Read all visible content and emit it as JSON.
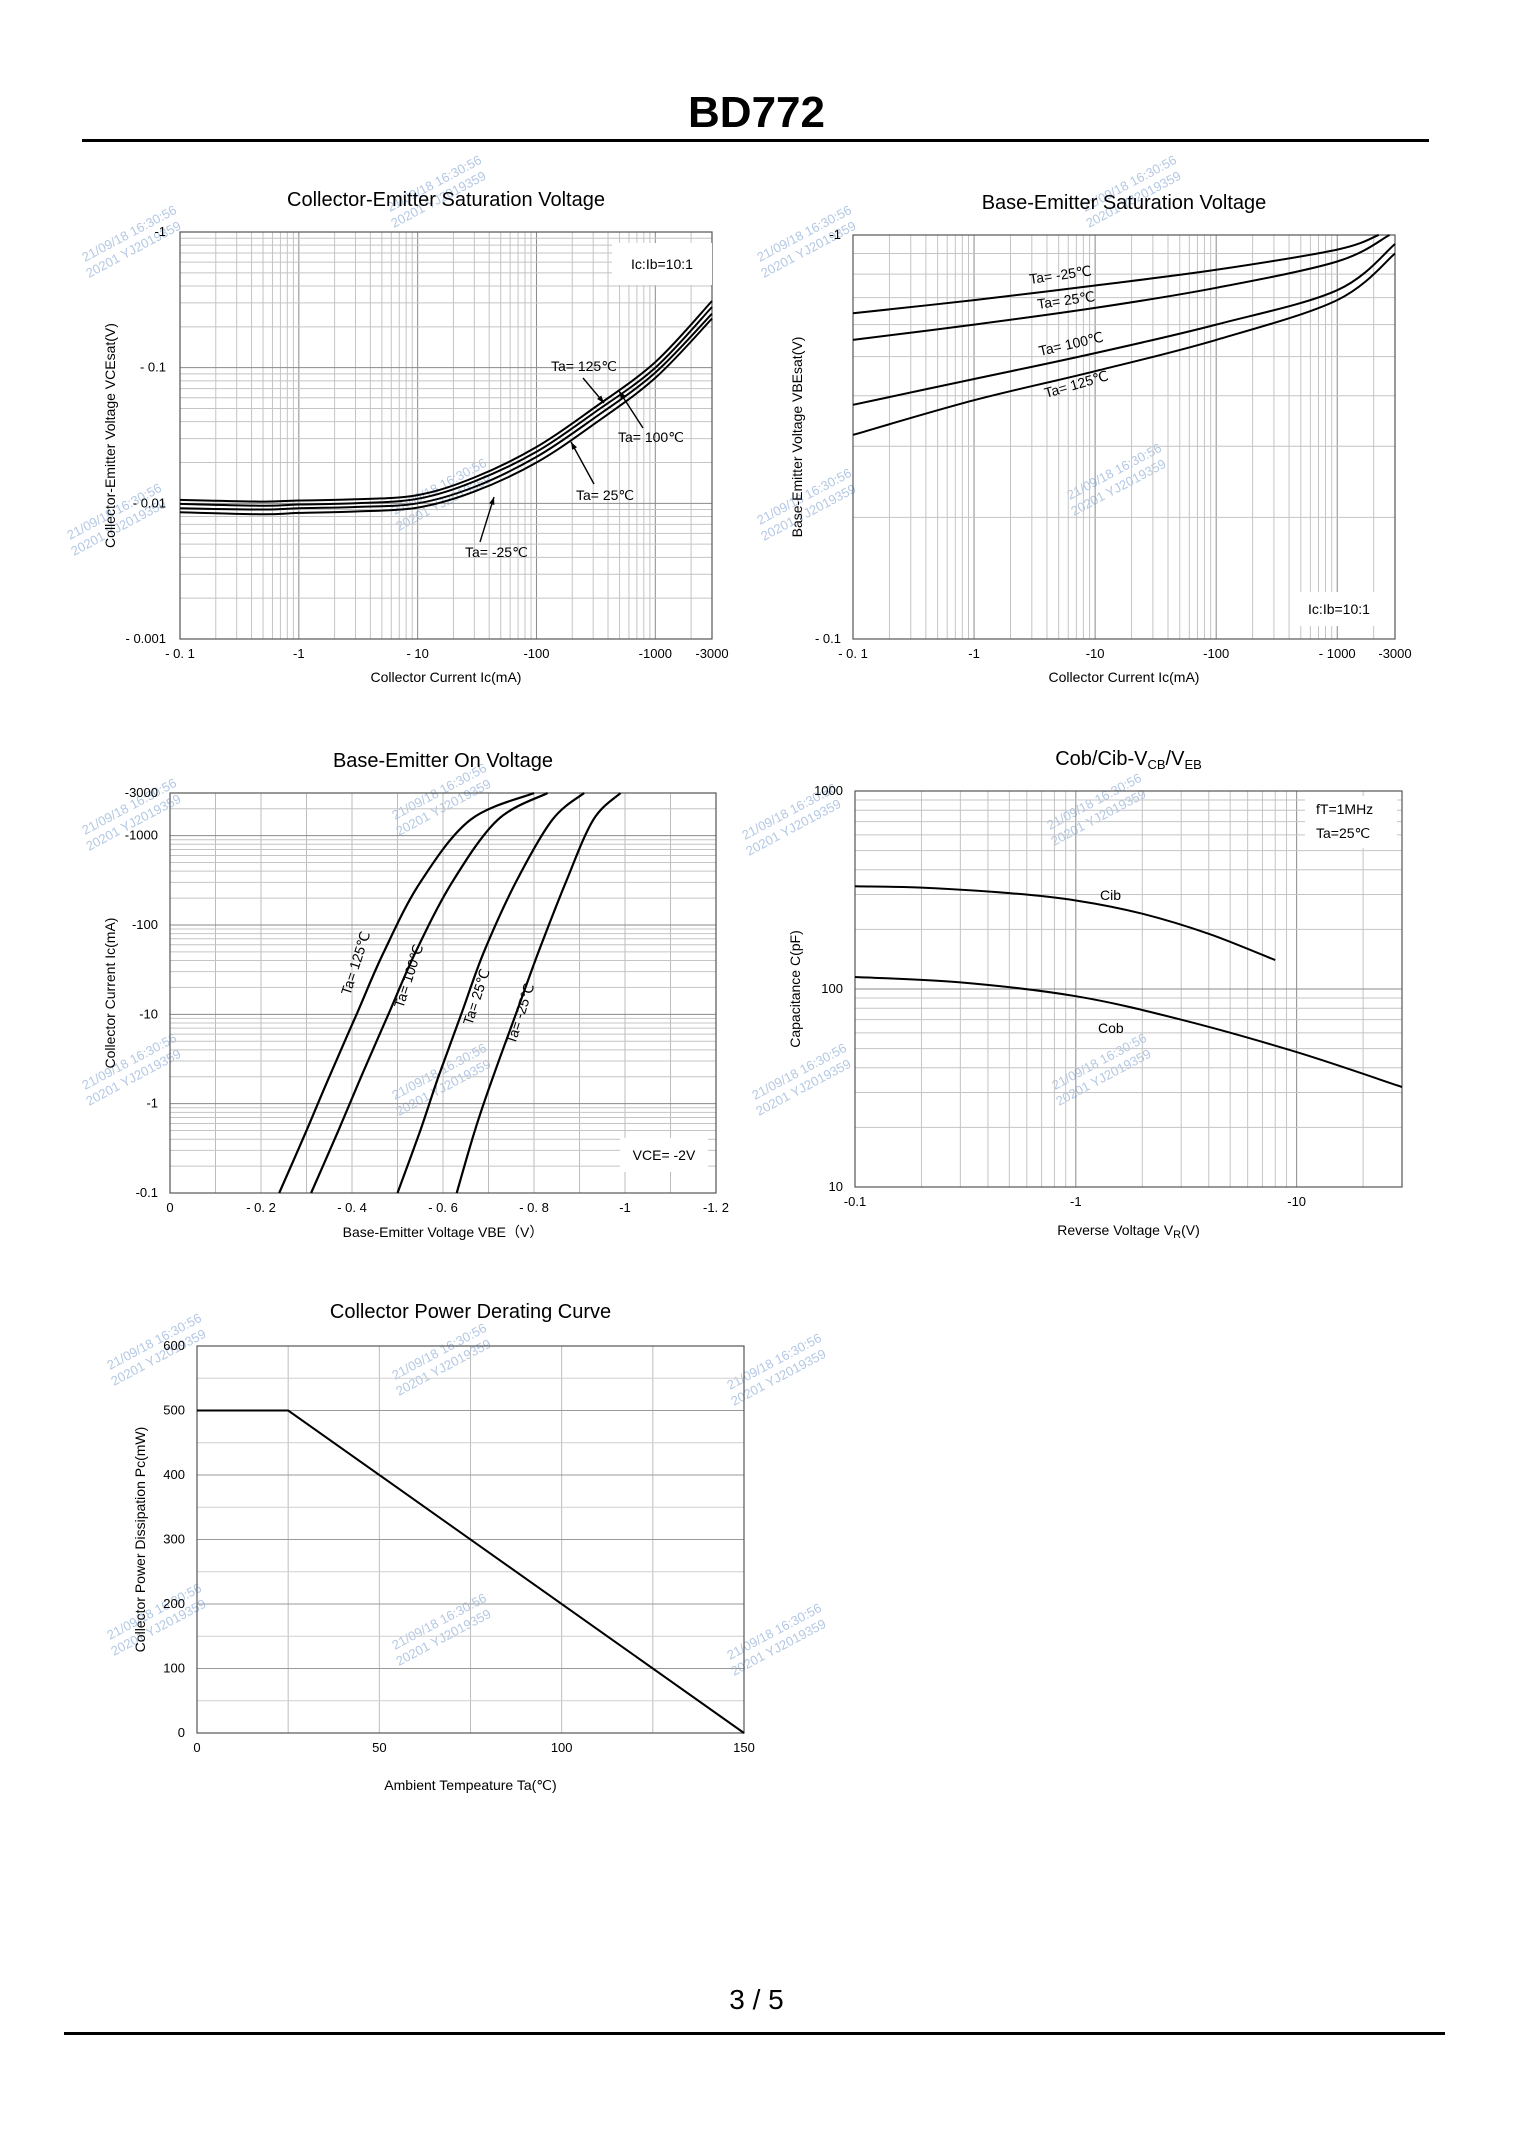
{
  "page": {
    "title": "BD772",
    "page_number": "3 / 5"
  },
  "watermarks": [
    "21/09/18 16:30:56",
    "20201 YJ2019359"
  ],
  "chart_data": [
    {
      "id": "vcesat",
      "type": "line",
      "title": "Collector-Emitter Saturation Voltage",
      "xlabel": "Collector Current   Ic(mA)",
      "ylabel": "Collector-Emitter Voltage   VCEsat(V)",
      "xscale": "log",
      "yscale": "log",
      "xlim": [
        0.1,
        3000
      ],
      "ylim": [
        0.001,
        1
      ],
      "xticks": [
        0.1,
        1,
        10,
        100,
        1000,
        3000
      ],
      "xtick_labels": [
        "- 0. 1",
        "-1",
        "- 10",
        "-100",
        "-1000",
        "-3000"
      ],
      "yticks": [
        0.001,
        0.01,
        0.1,
        1
      ],
      "ytick_labels": [
        "- 0.001",
        "- 0.01",
        "- 0.1",
        "-1"
      ],
      "grid": true,
      "legend_box": "Ic:Ib=10:1",
      "series": [
        {
          "name": "Ta= 125℃",
          "x": [
            0.1,
            0.5,
            1,
            3,
            10,
            30,
            100,
            300,
            1000,
            3000
          ],
          "y": [
            0.0106,
            0.0103,
            0.0105,
            0.0107,
            0.0115,
            0.0155,
            0.026,
            0.05,
            0.11,
            0.31
          ]
        },
        {
          "name": "Ta= 100℃",
          "x": [
            0.1,
            0.5,
            1,
            3,
            10,
            30,
            100,
            300,
            1000,
            3000
          ],
          "y": [
            0.0099,
            0.0096,
            0.0098,
            0.01,
            0.0108,
            0.0145,
            0.024,
            0.046,
            0.1,
            0.28
          ]
        },
        {
          "name": "Ta= 25℃",
          "x": [
            0.1,
            0.5,
            1,
            3,
            10,
            30,
            100,
            300,
            1000,
            3000
          ],
          "y": [
            0.0092,
            0.009,
            0.0092,
            0.0094,
            0.01,
            0.0132,
            0.022,
            0.042,
            0.092,
            0.25
          ]
        },
        {
          "name": "Ta= -25℃",
          "x": [
            0.1,
            0.5,
            1,
            3,
            10,
            30,
            100,
            300,
            1000,
            3000
          ],
          "y": [
            0.0086,
            0.0083,
            0.0085,
            0.0087,
            0.0093,
            0.0122,
            0.02,
            0.038,
            0.084,
            0.23
          ]
        }
      ]
    },
    {
      "id": "vbesat",
      "type": "line",
      "title": "Base-Emitter Saturation Voltage",
      "xlabel": "Collector Current   Ic(mA)",
      "ylabel": "Base-Emitter Voltage   VBEsat(V)",
      "xscale": "log",
      "yscale": "log",
      "xlim": [
        0.1,
        3000
      ],
      "ylim": [
        0.1,
        1
      ],
      "xticks": [
        0.1,
        1,
        10,
        100,
        1000,
        3000
      ],
      "xtick_labels": [
        "- 0. 1",
        "-1",
        "-10",
        "-100",
        "- 1000",
        "-3000"
      ],
      "yticks": [
        0.1,
        1
      ],
      "ytick_labels": [
        "- 0.1",
        "-1"
      ],
      "grid": true,
      "legend_box": "Ic:Ib=10:1",
      "series": [
        {
          "name": "Ta= -25℃",
          "x": [
            0.1,
            1,
            10,
            100,
            1000,
            2200
          ],
          "y": [
            0.64,
            0.69,
            0.75,
            0.82,
            0.92,
            1.0
          ]
        },
        {
          "name": "Ta= 25℃",
          "x": [
            0.1,
            1,
            10,
            100,
            1000,
            2700
          ],
          "y": [
            0.55,
            0.6,
            0.66,
            0.74,
            0.86,
            1.0
          ]
        },
        {
          "name": "Ta= 100℃",
          "x": [
            0.1,
            1,
            10,
            100,
            1000,
            3000
          ],
          "y": [
            0.38,
            0.44,
            0.51,
            0.6,
            0.73,
            0.95
          ]
        },
        {
          "name": "Ta= 125℃",
          "x": [
            0.1,
            1,
            10,
            100,
            1000,
            3000
          ],
          "y": [
            0.32,
            0.39,
            0.46,
            0.55,
            0.69,
            0.9
          ]
        }
      ]
    },
    {
      "id": "vbeon",
      "type": "line",
      "title": "Base-Emitter On Voltage",
      "xlabel": "Base-Emitter Voltage   VBE（V）",
      "ylabel": "Collector Current   Ic(mA)",
      "xscale": "linear",
      "yscale": "log",
      "xlim": [
        0,
        -1.2
      ],
      "ylim": [
        0.1,
        3000
      ],
      "xticks": [
        0,
        -0.2,
        -0.4,
        -0.6,
        -0.8,
        -1.0,
        -1.2
      ],
      "xtick_labels": [
        "0",
        "- 0. 2",
        "- 0. 4",
        "- 0. 6",
        "- 0. 8",
        "-1",
        "-1. 2"
      ],
      "yticks": [
        0.1,
        1,
        10,
        100,
        1000,
        3000
      ],
      "ytick_labels": [
        "-0.1",
        "-1",
        "-10",
        "-100",
        "-1000",
        "-3000"
      ],
      "grid": true,
      "legend_box": "VCE= -2V",
      "series": [
        {
          "name": "Ta= 125℃",
          "x": [
            -0.24,
            -0.3,
            -0.35,
            -0.41,
            -0.47,
            -0.55,
            -0.66,
            -0.8
          ],
          "y": [
            0.1,
            0.5,
            2,
            10,
            50,
            300,
            1500,
            3000
          ]
        },
        {
          "name": "Ta= 100℃",
          "x": [
            -0.31,
            -0.37,
            -0.42,
            -0.48,
            -0.54,
            -0.62,
            -0.72,
            -0.83
          ],
          "y": [
            0.1,
            0.5,
            2,
            10,
            50,
            300,
            1500,
            3000
          ]
        },
        {
          "name": "Ta= 25℃",
          "x": [
            -0.5,
            -0.55,
            -0.59,
            -0.64,
            -0.69,
            -0.76,
            -0.84,
            -0.91
          ],
          "y": [
            0.1,
            0.5,
            2,
            10,
            50,
            300,
            1500,
            3000
          ]
        },
        {
          "name": "Ta= -25℃",
          "x": [
            -0.63,
            -0.67,
            -0.71,
            -0.76,
            -0.81,
            -0.87,
            -0.93,
            -0.99
          ],
          "y": [
            0.1,
            0.5,
            2,
            10,
            50,
            300,
            1500,
            3000
          ]
        }
      ]
    },
    {
      "id": "cobcib",
      "type": "line",
      "title": "Cob/Cib-VCB/VEB",
      "title_parts": {
        "main1": "Cob/Cib-V",
        "sub1": "CB",
        "mid": "/V",
        "sub2": "EB"
      },
      "xlabel": "Reverse Voltage   VR(V)",
      "xlabel_parts": {
        "main": "Reverse Voltage   V",
        "sub": "R",
        "end": "(V)"
      },
      "ylabel": "Capacitance   C(pF)",
      "xscale": "log",
      "yscale": "log",
      "xlim": [
        0.1,
        30
      ],
      "ylim": [
        10,
        1000
      ],
      "xticks": [
        0.1,
        1,
        10
      ],
      "xtick_labels": [
        "-0.1",
        "-1",
        "-10"
      ],
      "yticks": [
        10,
        100,
        1000
      ],
      "ytick_labels": [
        "10",
        "100",
        "1000"
      ],
      "grid": true,
      "legend_lines": [
        "fT=1MHz",
        "Ta=25℃"
      ],
      "series": [
        {
          "name": "Cib",
          "x": [
            0.1,
            0.2,
            0.5,
            1,
            2,
            4,
            8
          ],
          "y": [
            330,
            325,
            305,
            280,
            240,
            190,
            140
          ]
        },
        {
          "name": "Cob",
          "x": [
            0.1,
            0.3,
            1,
            3,
            10,
            30
          ],
          "y": [
            115,
            108,
            92,
            70,
            48,
            32
          ]
        }
      ]
    },
    {
      "id": "derating",
      "type": "line",
      "title": "Collector Power Derating Curve",
      "xlabel": "Ambient Tempeature Ta(℃)",
      "ylabel": "Collector Power Dissipation   Pc(mW)",
      "xscale": "linear",
      "yscale": "linear",
      "xlim": [
        0,
        150
      ],
      "ylim": [
        0,
        600
      ],
      "xticks": [
        0,
        50,
        100,
        150
      ],
      "xtick_labels": [
        "0",
        "50",
        "100",
        "150"
      ],
      "yticks": [
        0,
        100,
        200,
        300,
        400,
        500,
        600
      ],
      "ytick_labels": [
        "0",
        "100",
        "200",
        "300",
        "400",
        "500",
        "600"
      ],
      "grid": true,
      "series": [
        {
          "name": "Pc",
          "x": [
            0,
            25,
            150
          ],
          "y": [
            500,
            500,
            0
          ]
        }
      ]
    }
  ]
}
